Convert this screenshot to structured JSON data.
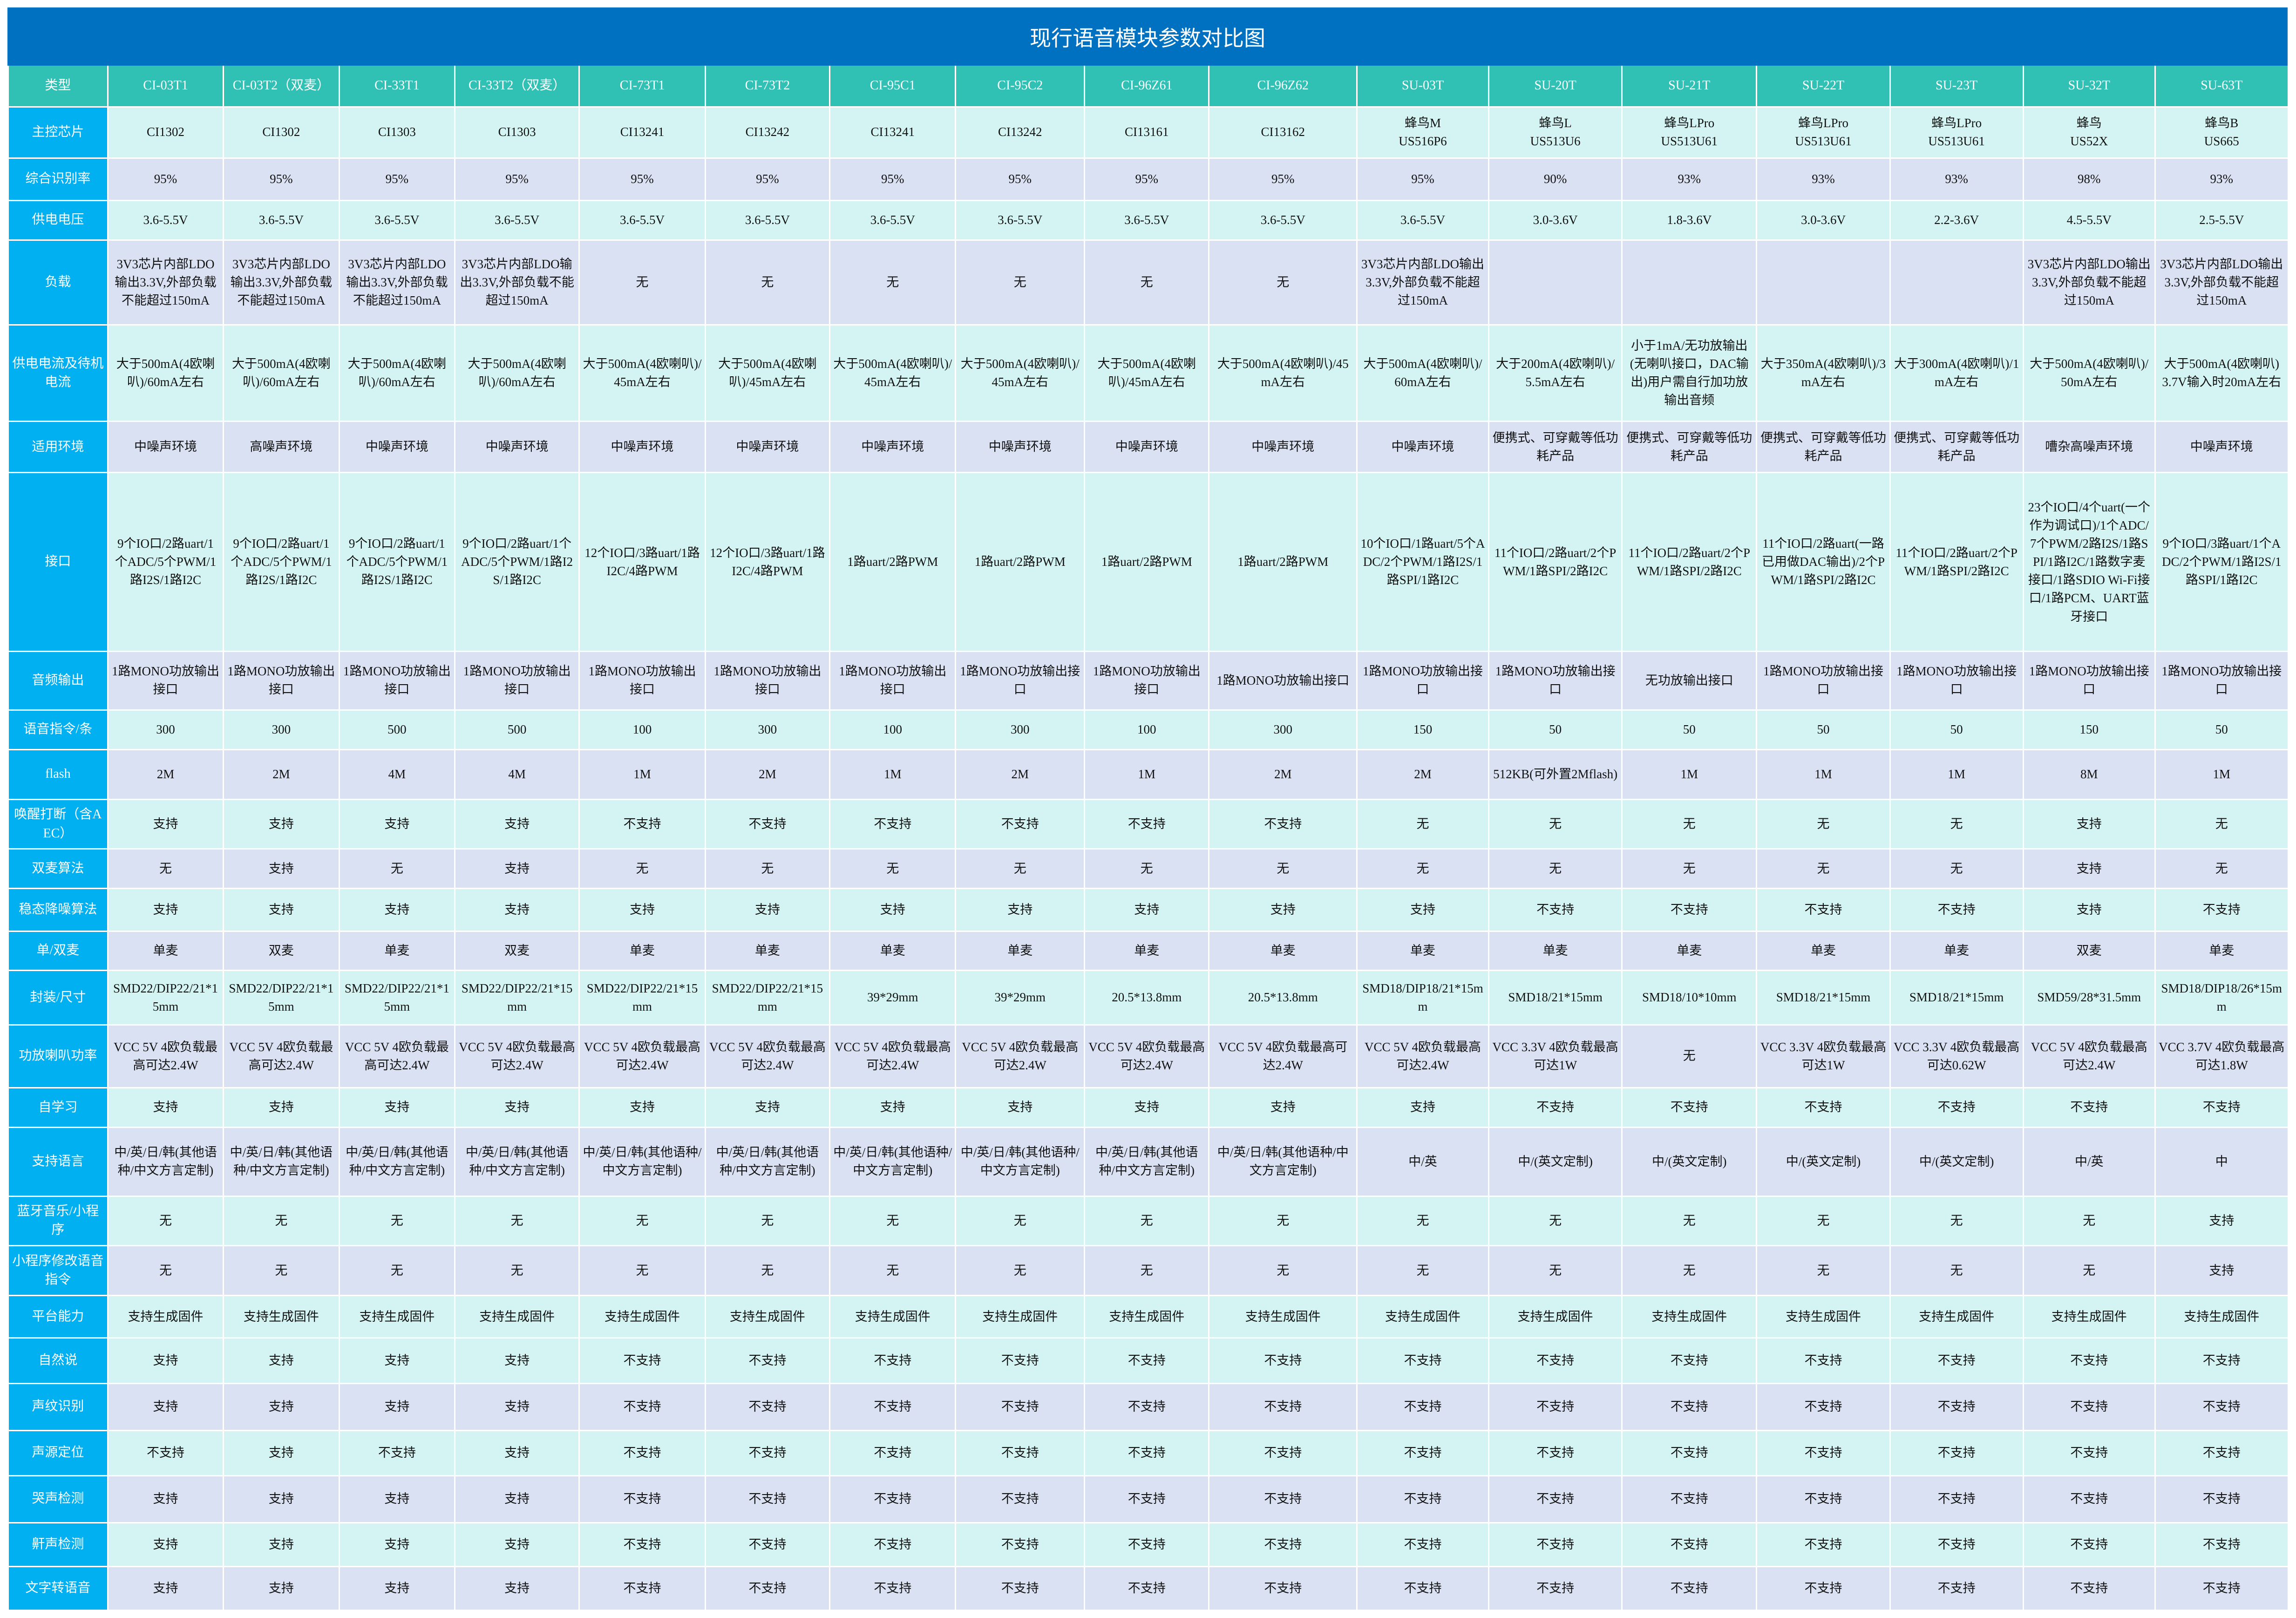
{
  "title": "现行语音模块参数对比图",
  "colors": {
    "title_bg": "#0070c0",
    "header_bg": "#31c0b4",
    "label_bg": "#00b0f0",
    "row_mint": "#d3f4f2",
    "row_lavender": "#d9e1f3"
  },
  "header": {
    "label": "类型",
    "modules": [
      "CI-03T1",
      "CI-03T2（双麦）",
      "CI-33T1",
      "CI-33T2（双麦）",
      "CI-73T1",
      "CI-73T2",
      "CI-95C1",
      "CI-95C2",
      "CI-96Z61",
      "CI-96Z62",
      "SU-03T",
      "SU-20T",
      "SU-21T",
      "SU-22T",
      "SU-23T",
      "SU-32T",
      "SU-63T"
    ]
  },
  "rows": [
    {
      "label": "主控芯片",
      "tone": "mint",
      "cells": [
        "CI1302",
        "CI1302",
        "CI1303",
        "CI1303",
        "CI13241",
        "CI13242",
        "CI13241",
        "CI13242",
        "CI13161",
        "CI13162",
        "蜂鸟M\nUS516P6",
        "蜂鸟L\nUS513U6",
        "蜂鸟LPro\nUS513U61",
        "蜂鸟LPro\nUS513U61",
        "蜂鸟LPro\nUS513U61",
        "蜂鸟\nUS52X",
        "蜂鸟B\nUS665"
      ]
    },
    {
      "label": "综合识别率",
      "tone": "lav",
      "cells": [
        "95%",
        "95%",
        "95%",
        "95%",
        "95%",
        "95%",
        "95%",
        "95%",
        "95%",
        "95%",
        "95%",
        "90%",
        "93%",
        "93%",
        "93%",
        "98%",
        "93%"
      ]
    },
    {
      "label": "供电电压",
      "tone": "mint",
      "cells": [
        "3.6-5.5V",
        "3.6-5.5V",
        "3.6-5.5V",
        "3.6-5.5V",
        "3.6-5.5V",
        "3.6-5.5V",
        "3.6-5.5V",
        "3.6-5.5V",
        "3.6-5.5V",
        "3.6-5.5V",
        "3.6-5.5V",
        "3.0-3.6V",
        "1.8-3.6V",
        "3.0-3.6V",
        "2.2-3.6V",
        "4.5-5.5V",
        "2.5-5.5V"
      ]
    },
    {
      "label": "负载",
      "tone": "lav",
      "cells": [
        "3V3芯片内部LDO输出3.3V,外部负载不能超过150mA",
        "3V3芯片内部LDO输出3.3V,外部负载不能超过150mA",
        "3V3芯片内部LDO输出3.3V,外部负载不能超过150mA",
        "3V3芯片内部LDO输出3.3V,外部负载不能超过150mA",
        "无",
        "无",
        "无",
        "无",
        "无",
        "无",
        "3V3芯片内部LDO输出3.3V,外部负载不能超过150mA",
        "",
        "",
        "",
        "",
        "3V3芯片内部LDO输出3.3V,外部负载不能超过150mA",
        "3V3芯片内部LDO输出3.3V,外部负载不能超过150mA"
      ]
    },
    {
      "label": "供电电流及待机电流",
      "tone": "mint",
      "cells": [
        "大于500mA(4欧喇叭)/60mA左右",
        "大于500mA(4欧喇叭)/60mA左右",
        "大于500mA(4欧喇叭)/60mA左右",
        "大于500mA(4欧喇叭)/60mA左右",
        "大于500mA(4欧喇叭)/45mA左右",
        "大于500mA(4欧喇叭)/45mA左右",
        "大于500mA(4欧喇叭)/45mA左右",
        "大于500mA(4欧喇叭)/45mA左右",
        "大于500mA(4欧喇叭)/45mA左右",
        "大于500mA(4欧喇叭)/45mA左右",
        "大于500mA(4欧喇叭)/60mA左右",
        "大于200mA(4欧喇叭)/5.5mA左右",
        "小于1mA/无功放输出(无喇叭接口，DAC输出)用户需自行加功放输出音频",
        "大于350mA(4欧喇叭)/3mA左右",
        "大于300mA(4欧喇叭)/1mA左右",
        "大于500mA(4欧喇叭)/50mA左右",
        "大于500mA(4欧喇叭) 3.7V输入时20mA左右"
      ]
    },
    {
      "label": "适用环境",
      "tone": "lav",
      "cells": [
        "中噪声环境",
        "高噪声环境",
        "中噪声环境",
        "中噪声环境",
        "中噪声环境",
        "中噪声环境",
        "中噪声环境",
        "中噪声环境",
        "中噪声环境",
        "中噪声环境",
        "中噪声环境",
        "便携式、可穿戴等低功耗产品",
        "便携式、可穿戴等低功耗产品",
        "便携式、可穿戴等低功耗产品",
        "便携式、可穿戴等低功耗产品",
        "嘈杂高噪声环境",
        "中噪声环境"
      ]
    },
    {
      "label": "接口",
      "tone": "mint",
      "cells": [
        "9个IO口/2路uart/1个ADC/5个PWM/1路I2S/1路I2C",
        "9个IO口/2路uart/1个ADC/5个PWM/1路I2S/1路I2C",
        "9个IO口/2路uart/1个ADC/5个PWM/1路I2S/1路I2C",
        "9个IO口/2路uart/1个ADC/5个PWM/1路I2S/1路I2C",
        "12个IO口/3路uart/1路I2C/4路PWM",
        "12个IO口/3路uart/1路I2C/4路PWM",
        "1路uart/2路PWM",
        "1路uart/2路PWM",
        "1路uart/2路PWM",
        "1路uart/2路PWM",
        "10个IO口/1路uart/5个ADC/2个PWM/1路I2S/1路SPI/1路I2C",
        "11个IO口/2路uart/2个PWM/1路SPI/2路I2C",
        "11个IO口/2路uart/2个PWM/1路SPI/2路I2C",
        "11个IO口/2路uart(一路已用做DAC输出)/2个PWM/1路SPI/2路I2C",
        "11个IO口/2路uart/2个PWM/1路SPI/2路I2C",
        "23个IO口/4个uart(一个作为调试口)/1个ADC/7个PWM/2路I2S/1路SPI/1路I2C/1路数字麦接口/1路SDIO Wi-Fi接口/1路PCM、UART蓝牙接口",
        "9个IO口/3路uart/1个ADC/2个PWM/1路I2S/1路SPI/1路I2C"
      ]
    },
    {
      "label": "音频输出",
      "tone": "lav",
      "cells": [
        "1路MONO功放输出接口",
        "1路MONO功放输出接口",
        "1路MONO功放输出接口",
        "1路MONO功放输出接口",
        "1路MONO功放输出接口",
        "1路MONO功放输出接口",
        "1路MONO功放输出接口",
        "1路MONO功放输出接口",
        "1路MONO功放输出接口",
        "1路MONO功放输出接口",
        "1路MONO功放输出接口",
        "1路MONO功放输出接口",
        "无功放输出接口",
        "1路MONO功放输出接口",
        "1路MONO功放输出接口",
        "1路MONO功放输出接口",
        "1路MONO功放输出接口"
      ]
    },
    {
      "label": "语音指令/条",
      "tone": "mint",
      "cells": [
        "300",
        "300",
        "500",
        "500",
        "100",
        "300",
        "100",
        "300",
        "100",
        "300",
        "150",
        "50",
        "50",
        "50",
        "50",
        "150",
        "50"
      ]
    },
    {
      "label": "flash",
      "tone": "lav",
      "cells": [
        "2M",
        "2M",
        "4M",
        "4M",
        "1M",
        "2M",
        "1M",
        "2M",
        "1M",
        "2M",
        "2M",
        "512KB(可外置2Mflash)",
        "1M",
        "1M",
        "1M",
        "8M",
        "1M"
      ]
    },
    {
      "label": "唤醒打断（含AEC）",
      "tone": "mint",
      "cells": [
        "支持",
        "支持",
        "支持",
        "支持",
        "不支持",
        "不支持",
        "不支持",
        "不支持",
        "不支持",
        "不支持",
        "无",
        "无",
        "无",
        "无",
        "无",
        "支持",
        "无"
      ]
    },
    {
      "label": "双麦算法",
      "tone": "lav",
      "cells": [
        "无",
        "支持",
        "无",
        "支持",
        "无",
        "无",
        "无",
        "无",
        "无",
        "无",
        "无",
        "无",
        "无",
        "无",
        "无",
        "支持",
        "无"
      ]
    },
    {
      "label": "稳态降噪算法",
      "tone": "mint",
      "cells": [
        "支持",
        "支持",
        "支持",
        "支持",
        "支持",
        "支持",
        "支持",
        "支持",
        "支持",
        "支持",
        "支持",
        "不支持",
        "不支持",
        "不支持",
        "不支持",
        "支持",
        "不支持"
      ]
    },
    {
      "label": "单/双麦",
      "tone": "lav",
      "cells": [
        "单麦",
        "双麦",
        "单麦",
        "双麦",
        "单麦",
        "单麦",
        "单麦",
        "单麦",
        "单麦",
        "单麦",
        "单麦",
        "单麦",
        "单麦",
        "单麦",
        "单麦",
        "双麦",
        "单麦"
      ]
    },
    {
      "label": "封装/尺寸",
      "tone": "mint",
      "cells": [
        "SMD22/DIP22/21*15mm",
        "SMD22/DIP22/21*15mm",
        "SMD22/DIP22/21*15mm",
        "SMD22/DIP22/21*15mm",
        "SMD22/DIP22/21*15mm",
        "SMD22/DIP22/21*15mm",
        "39*29mm",
        "39*29mm",
        "20.5*13.8mm",
        "20.5*13.8mm",
        "SMD18/DIP18/21*15mm",
        "SMD18/21*15mm",
        "SMD18/10*10mm",
        "SMD18/21*15mm",
        "SMD18/21*15mm",
        "SMD59/28*31.5mm",
        "SMD18/DIP18/26*15mm"
      ]
    },
    {
      "label": "功放喇叭功率",
      "tone": "lav",
      "cells": [
        "VCC 5V 4欧负载最高可达2.4W",
        "VCC 5V 4欧负载最高可达2.4W",
        "VCC 5V 4欧负载最高可达2.4W",
        "VCC 5V 4欧负载最高可达2.4W",
        "VCC 5V 4欧负载最高可达2.4W",
        "VCC 5V 4欧负载最高可达2.4W",
        "VCC 5V 4欧负载最高可达2.4W",
        "VCC 5V 4欧负载最高可达2.4W",
        "VCC 5V 4欧负载最高可达2.4W",
        "VCC 5V 4欧负载最高可达2.4W",
        "VCC 5V 4欧负载最高可达2.4W",
        "VCC 3.3V 4欧负载最高可达1W",
        "无",
        "VCC 3.3V 4欧负载最高可达1W",
        "VCC 3.3V 4欧负载最高可达0.62W",
        "VCC 5V 4欧负载最高可达2.4W",
        "VCC 3.7V 4欧负载最高可达1.8W"
      ]
    },
    {
      "label": "自学习",
      "tone": "mint",
      "cells": [
        "支持",
        "支持",
        "支持",
        "支持",
        "支持",
        "支持",
        "支持",
        "支持",
        "支持",
        "支持",
        "支持",
        "不支持",
        "不支持",
        "不支持",
        "不支持",
        "不支持",
        "不支持"
      ]
    },
    {
      "label": "支持语言",
      "tone": "lav",
      "cells": [
        "中/英/日/韩(其他语种/中文方言定制)",
        "中/英/日/韩(其他语种/中文方言定制)",
        "中/英/日/韩(其他语种/中文方言定制)",
        "中/英/日/韩(其他语种/中文方言定制)",
        "中/英/日/韩(其他语种/中文方言定制)",
        "中/英/日/韩(其他语种/中文方言定制)",
        "中/英/日/韩(其他语种/中文方言定制)",
        "中/英/日/韩(其他语种/中文方言定制)",
        "中/英/日/韩(其他语种/中文方言定制)",
        "中/英/日/韩(其他语种/中文方言定制)",
        "中/英",
        "中/(英文定制)",
        "中/(英文定制)",
        "中/(英文定制)",
        "中/(英文定制)",
        "中/英",
        "中"
      ]
    },
    {
      "label": "蓝牙音乐/小程序",
      "tone": "mint",
      "cells": [
        "无",
        "无",
        "无",
        "无",
        "无",
        "无",
        "无",
        "无",
        "无",
        "无",
        "无",
        "无",
        "无",
        "无",
        "无",
        "无",
        "支持"
      ]
    },
    {
      "label": "小程序修改语音指令",
      "tone": "lav",
      "cells": [
        "无",
        "无",
        "无",
        "无",
        "无",
        "无",
        "无",
        "无",
        "无",
        "无",
        "无",
        "无",
        "无",
        "无",
        "无",
        "无",
        "支持"
      ]
    },
    {
      "label": "平台能力",
      "tone": "mint",
      "cells": [
        "支持生成固件",
        "支持生成固件",
        "支持生成固件",
        "支持生成固件",
        "支持生成固件",
        "支持生成固件",
        "支持生成固件",
        "支持生成固件",
        "支持生成固件",
        "支持生成固件",
        "支持生成固件",
        "支持生成固件",
        "支持生成固件",
        "支持生成固件",
        "支持生成固件",
        "支持生成固件",
        "支持生成固件"
      ]
    },
    {
      "label": "自然说",
      "tone": "mint",
      "cells": [
        "支持",
        "支持",
        "支持",
        "支持",
        "不支持",
        "不支持",
        "不支持",
        "不支持",
        "不支持",
        "不支持",
        "不支持",
        "不支持",
        "不支持",
        "不支持",
        "不支持",
        "不支持",
        "不支持"
      ]
    },
    {
      "label": "声纹识别",
      "tone": "lav",
      "cells": [
        "支持",
        "支持",
        "支持",
        "支持",
        "不支持",
        "不支持",
        "不支持",
        "不支持",
        "不支持",
        "不支持",
        "不支持",
        "不支持",
        "不支持",
        "不支持",
        "不支持",
        "不支持",
        "不支持"
      ]
    },
    {
      "label": "声源定位",
      "tone": "mint",
      "cells": [
        "不支持",
        "支持",
        "不支持",
        "支持",
        "不支持",
        "不支持",
        "不支持",
        "不支持",
        "不支持",
        "不支持",
        "不支持",
        "不支持",
        "不支持",
        "不支持",
        "不支持",
        "不支持",
        "不支持"
      ]
    },
    {
      "label": "哭声检测",
      "tone": "lav",
      "cells": [
        "支持",
        "支持",
        "支持",
        "支持",
        "不支持",
        "不支持",
        "不支持",
        "不支持",
        "不支持",
        "不支持",
        "不支持",
        "不支持",
        "不支持",
        "不支持",
        "不支持",
        "不支持",
        "不支持"
      ]
    },
    {
      "label": "鼾声检测",
      "tone": "mint",
      "cells": [
        "支持",
        "支持",
        "支持",
        "支持",
        "不支持",
        "不支持",
        "不支持",
        "不支持",
        "不支持",
        "不支持",
        "不支持",
        "不支持",
        "不支持",
        "不支持",
        "不支持",
        "不支持",
        "不支持"
      ]
    },
    {
      "label": "文字转语音",
      "tone": "lav",
      "cells": [
        "支持",
        "支持",
        "支持",
        "支持",
        "不支持",
        "不支持",
        "不支持",
        "不支持",
        "不支持",
        "不支持",
        "不支持",
        "不支持",
        "不支持",
        "不支持",
        "不支持",
        "不支持",
        "不支持"
      ]
    }
  ]
}
